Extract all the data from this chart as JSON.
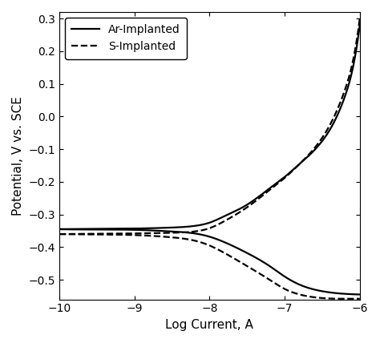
{
  "xlabel": "Log Current, A",
  "ylabel": "Potential, V vs. SCE",
  "xlim": [
    -10,
    -6
  ],
  "ylim": [
    -0.56,
    0.32
  ],
  "xticks": [
    -10,
    -9,
    -8,
    -7,
    -6
  ],
  "yticks": [
    -0.5,
    -0.4,
    -0.3,
    -0.2,
    -0.1,
    0.0,
    0.1,
    0.2,
    0.3
  ],
  "legend": [
    {
      "label": "Ar-Implanted",
      "linestyle": "solid"
    },
    {
      "label": "S-Implanted",
      "linestyle": "dashed"
    }
  ],
  "background_color": "#ffffff",
  "line_color": "#000000",
  "linewidth": 1.6
}
